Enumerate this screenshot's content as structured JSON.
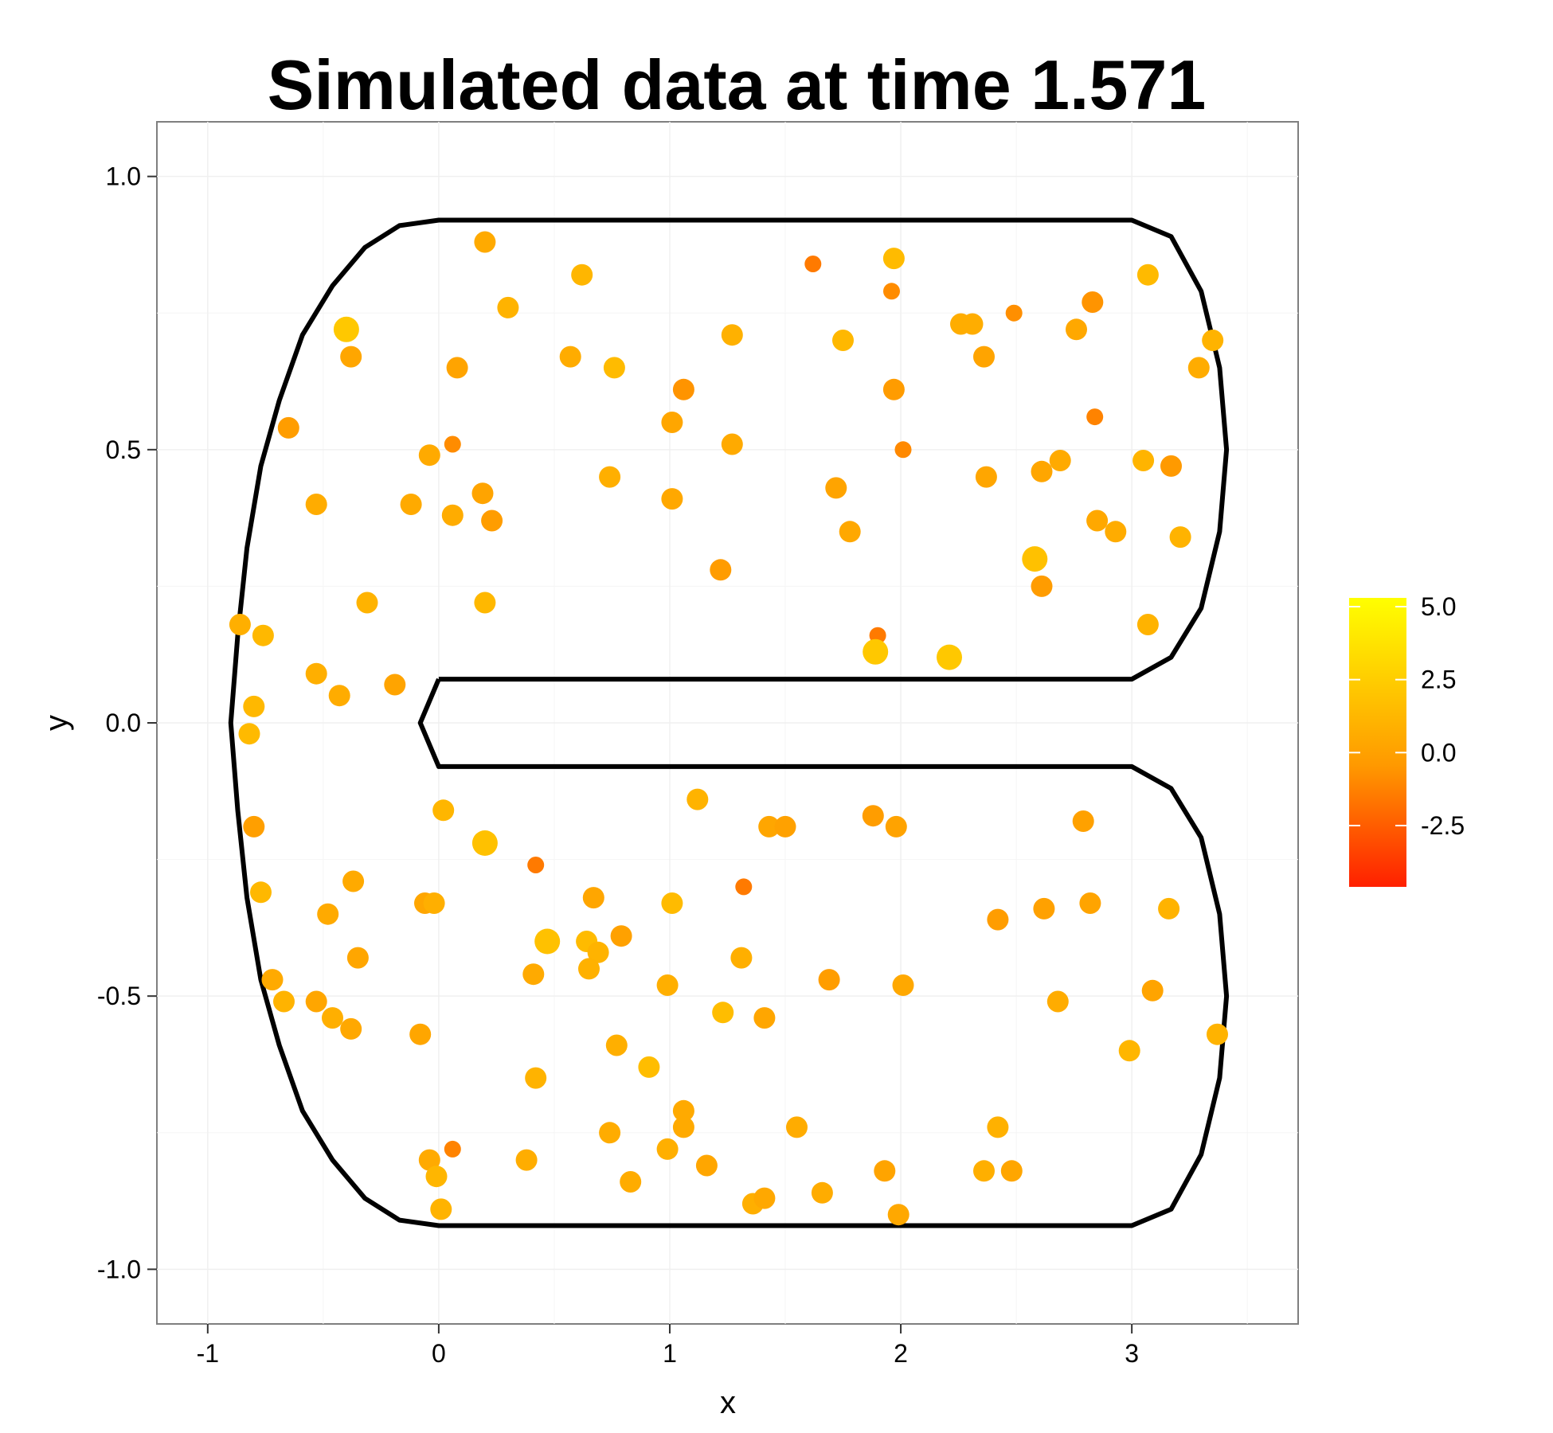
{
  "chart_data": {
    "type": "scatter",
    "title": "Simulated data at time 1.571",
    "xlabel": "x",
    "ylabel": "y",
    "xlim": [
      -1.22,
      3.72
    ],
    "ylim": [
      -1.1,
      1.1
    ],
    "x_ticks": [
      -1,
      0,
      1,
      2,
      3
    ],
    "x_tick_labels": [
      "-1",
      "0",
      "1",
      "2",
      "3"
    ],
    "y_ticks": [
      -1.0,
      -0.5,
      0.0,
      0.5,
      1.0
    ],
    "y_tick_labels": [
      "-1.0",
      "-0.5",
      "0.0",
      "0.5",
      "1.0"
    ],
    "grid": true,
    "panel_background": "#ffffff",
    "grid_color": "#f0f0f0",
    "boundary_color": "#000000",
    "legend": {
      "placement": "right",
      "type": "colorbar",
      "low_color": "#FF2000",
      "mid_color": "#FF9900",
      "high_color": "#FFFF00",
      "range": [
        -4.6,
        5.3
      ],
      "ticks": [
        5.0,
        2.5,
        0.0,
        -2.5
      ],
      "tick_labels": [
        "5.0",
        "2.5",
        "0.0",
        "-2.5"
      ]
    },
    "boundary": [
      [
        0.0,
        0.08
      ],
      [
        3.0,
        0.08
      ],
      [
        3.17,
        0.12
      ],
      [
        3.3,
        0.21
      ],
      [
        3.38,
        0.35
      ],
      [
        3.41,
        0.5
      ],
      [
        3.38,
        0.65
      ],
      [
        3.3,
        0.79
      ],
      [
        3.17,
        0.89
      ],
      [
        3.0,
        0.92
      ],
      [
        0.0,
        0.92
      ],
      [
        -0.17,
        0.91
      ],
      [
        -0.32,
        0.87
      ],
      [
        -0.46,
        0.8
      ],
      [
        -0.59,
        0.71
      ],
      [
        -0.69,
        0.59
      ],
      [
        -0.77,
        0.47
      ],
      [
        -0.83,
        0.32
      ],
      [
        -0.87,
        0.16
      ],
      [
        -0.9,
        0.0
      ],
      [
        -0.87,
        -0.16
      ],
      [
        -0.83,
        -0.32
      ],
      [
        -0.77,
        -0.47
      ],
      [
        -0.69,
        -0.59
      ],
      [
        -0.59,
        -0.71
      ],
      [
        -0.46,
        -0.8
      ],
      [
        -0.32,
        -0.87
      ],
      [
        -0.17,
        -0.91
      ],
      [
        0.0,
        -0.92
      ],
      [
        3.0,
        -0.92
      ],
      [
        3.17,
        -0.89
      ],
      [
        3.3,
        -0.79
      ],
      [
        3.38,
        -0.65
      ],
      [
        3.41,
        -0.5
      ],
      [
        3.38,
        -0.35
      ],
      [
        3.3,
        -0.21
      ],
      [
        3.17,
        -0.12
      ],
      [
        3.0,
        -0.08
      ],
      [
        0.0,
        -0.08
      ],
      [
        -0.08,
        0.0
      ],
      [
        0.0,
        0.08
      ]
    ],
    "points": [
      {
        "x": 0.2,
        "y": 0.88,
        "v": 0.5
      },
      {
        "x": 0.3,
        "y": 0.76,
        "v": 1.0
      },
      {
        "x": 0.62,
        "y": 0.82,
        "v": 1.2
      },
      {
        "x": 1.62,
        "y": 0.84,
        "v": -1.5
      },
      {
        "x": 1.97,
        "y": 0.85,
        "v": 1.5
      },
      {
        "x": 1.96,
        "y": 0.79,
        "v": -0.9
      },
      {
        "x": 2.49,
        "y": 0.75,
        "v": -0.8
      },
      {
        "x": 2.83,
        "y": 0.77,
        "v": -0.6
      },
      {
        "x": 3.07,
        "y": 0.82,
        "v": 1.4
      },
      {
        "x": -0.4,
        "y": 0.72,
        "v": 2.2
      },
      {
        "x": -0.38,
        "y": 0.67,
        "v": 0.3
      },
      {
        "x": 0.08,
        "y": 0.65,
        "v": 0.2
      },
      {
        "x": 0.57,
        "y": 0.67,
        "v": 0.6
      },
      {
        "x": 0.76,
        "y": 0.65,
        "v": 1.5
      },
      {
        "x": 1.27,
        "y": 0.71,
        "v": 0.9
      },
      {
        "x": 1.75,
        "y": 0.7,
        "v": 1.3
      },
      {
        "x": 2.26,
        "y": 0.73,
        "v": 0.7
      },
      {
        "x": 2.31,
        "y": 0.73,
        "v": 0.7
      },
      {
        "x": 2.36,
        "y": 0.67,
        "v": 0.2
      },
      {
        "x": 2.76,
        "y": 0.72,
        "v": 0.4
      },
      {
        "x": 3.29,
        "y": 0.65,
        "v": 0.6
      },
      {
        "x": 3.35,
        "y": 0.7,
        "v": 1.0
      },
      {
        "x": 1.06,
        "y": 0.61,
        "v": -0.6
      },
      {
        "x": 1.97,
        "y": 0.61,
        "v": -0.3
      },
      {
        "x": 2.84,
        "y": 0.56,
        "v": -1.2
      },
      {
        "x": -0.65,
        "y": 0.54,
        "v": -0.2
      },
      {
        "x": -0.04,
        "y": 0.49,
        "v": 0.5
      },
      {
        "x": 0.06,
        "y": 0.51,
        "v": -0.9
      },
      {
        "x": 1.01,
        "y": 0.55,
        "v": 0.3
      },
      {
        "x": 1.27,
        "y": 0.51,
        "v": 0.5
      },
      {
        "x": 2.01,
        "y": 0.5,
        "v": -1.0
      },
      {
        "x": 2.61,
        "y": 0.46,
        "v": 0.3
      },
      {
        "x": 2.69,
        "y": 0.48,
        "v": 0.5
      },
      {
        "x": 3.05,
        "y": 0.48,
        "v": 1.1
      },
      {
        "x": 3.17,
        "y": 0.47,
        "v": -0.4
      },
      {
        "x": 0.74,
        "y": 0.45,
        "v": 0.8
      },
      {
        "x": 2.37,
        "y": 0.45,
        "v": 0.3
      },
      {
        "x": -0.53,
        "y": 0.4,
        "v": 0.6
      },
      {
        "x": -0.12,
        "y": 0.4,
        "v": 0.5
      },
      {
        "x": 0.06,
        "y": 0.38,
        "v": 0.6
      },
      {
        "x": 0.19,
        "y": 0.42,
        "v": 0.2
      },
      {
        "x": 1.01,
        "y": 0.41,
        "v": 0.4
      },
      {
        "x": 1.72,
        "y": 0.43,
        "v": 0.2
      },
      {
        "x": 0.23,
        "y": 0.37,
        "v": -0.2
      },
      {
        "x": 1.78,
        "y": 0.35,
        "v": 0.4
      },
      {
        "x": 2.85,
        "y": 0.37,
        "v": 0.4
      },
      {
        "x": 2.93,
        "y": 0.35,
        "v": 0.6
      },
      {
        "x": 3.21,
        "y": 0.34,
        "v": 1.0
      },
      {
        "x": 2.58,
        "y": 0.3,
        "v": 1.8
      },
      {
        "x": 1.22,
        "y": 0.28,
        "v": -0.3
      },
      {
        "x": 2.61,
        "y": 0.25,
        "v": -0.3
      },
      {
        "x": -0.31,
        "y": 0.22,
        "v": 1.0
      },
      {
        "x": 0.2,
        "y": 0.22,
        "v": 1.3
      },
      {
        "x": -0.86,
        "y": 0.18,
        "v": 0.8
      },
      {
        "x": -0.76,
        "y": 0.16,
        "v": 1.3
      },
      {
        "x": 1.9,
        "y": 0.16,
        "v": -1.5
      },
      {
        "x": 1.89,
        "y": 0.13,
        "v": 2.2
      },
      {
        "x": 2.21,
        "y": 0.12,
        "v": 2.2
      },
      {
        "x": 3.07,
        "y": 0.18,
        "v": 1.0
      },
      {
        "x": -0.53,
        "y": 0.09,
        "v": 0.8
      },
      {
        "x": -0.19,
        "y": 0.07,
        "v": 0.2
      },
      {
        "x": -0.8,
        "y": 0.03,
        "v": 1.3
      },
      {
        "x": -0.43,
        "y": 0.05,
        "v": 0.6
      },
      {
        "x": -0.82,
        "y": -0.02,
        "v": 1.4
      },
      {
        "x": 1.12,
        "y": -0.14,
        "v": 1.0
      },
      {
        "x": 0.02,
        "y": -0.16,
        "v": 1.2
      },
      {
        "x": 1.88,
        "y": -0.17,
        "v": -0.2
      },
      {
        "x": 2.79,
        "y": -0.18,
        "v": 0.0
      },
      {
        "x": -0.8,
        "y": -0.19,
        "v": -0.1
      },
      {
        "x": 1.43,
        "y": -0.19,
        "v": 0.3
      },
      {
        "x": 1.5,
        "y": -0.19,
        "v": 0.0
      },
      {
        "x": 1.98,
        "y": -0.19,
        "v": 0.1
      },
      {
        "x": 0.2,
        "y": -0.22,
        "v": 1.8
      },
      {
        "x": 0.42,
        "y": -0.26,
        "v": -1.5
      },
      {
        "x": -0.37,
        "y": -0.29,
        "v": 0.5
      },
      {
        "x": -0.77,
        "y": -0.31,
        "v": 1.3
      },
      {
        "x": 0.67,
        "y": -0.32,
        "v": 0.3
      },
      {
        "x": 1.32,
        "y": -0.3,
        "v": -1.5
      },
      {
        "x": -0.06,
        "y": -0.33,
        "v": 0.3
      },
      {
        "x": -0.02,
        "y": -0.33,
        "v": 0.8
      },
      {
        "x": 1.01,
        "y": -0.33,
        "v": 1.5
      },
      {
        "x": 2.62,
        "y": -0.34,
        "v": 0.0
      },
      {
        "x": 2.82,
        "y": -0.33,
        "v": 0.2
      },
      {
        "x": 3.16,
        "y": -0.34,
        "v": 1.0
      },
      {
        "x": -0.48,
        "y": -0.35,
        "v": 0.5
      },
      {
        "x": 2.42,
        "y": -0.36,
        "v": -0.2
      },
      {
        "x": 0.47,
        "y": -0.4,
        "v": 1.8
      },
      {
        "x": 0.64,
        "y": -0.4,
        "v": 1.5
      },
      {
        "x": 0.69,
        "y": -0.42,
        "v": 1.0
      },
      {
        "x": 0.79,
        "y": -0.39,
        "v": 0.0
      },
      {
        "x": -0.35,
        "y": -0.43,
        "v": 0.3
      },
      {
        "x": 1.31,
        "y": -0.43,
        "v": 0.8
      },
      {
        "x": 0.41,
        "y": -0.46,
        "v": 0.5
      },
      {
        "x": 0.65,
        "y": -0.45,
        "v": 0.9
      },
      {
        "x": -0.72,
        "y": -0.47,
        "v": 0.5
      },
      {
        "x": 1.69,
        "y": -0.47,
        "v": -0.2
      },
      {
        "x": 0.99,
        "y": -0.48,
        "v": 0.8
      },
      {
        "x": 2.01,
        "y": -0.48,
        "v": 0.4
      },
      {
        "x": -0.67,
        "y": -0.51,
        "v": 1.0
      },
      {
        "x": -0.53,
        "y": -0.51,
        "v": 0.3
      },
      {
        "x": 2.68,
        "y": -0.51,
        "v": 0.6
      },
      {
        "x": 3.09,
        "y": -0.49,
        "v": 0.2
      },
      {
        "x": -0.46,
        "y": -0.54,
        "v": 0.8
      },
      {
        "x": 1.23,
        "y": -0.53,
        "v": 1.6
      },
      {
        "x": 1.41,
        "y": -0.54,
        "v": 0.3
      },
      {
        "x": -0.38,
        "y": -0.56,
        "v": 0.4
      },
      {
        "x": -0.08,
        "y": -0.57,
        "v": 0.3
      },
      {
        "x": 3.37,
        "y": -0.57,
        "v": 1.0
      },
      {
        "x": 0.77,
        "y": -0.59,
        "v": 0.8
      },
      {
        "x": 2.99,
        "y": -0.6,
        "v": 1.2
      },
      {
        "x": 0.91,
        "y": -0.63,
        "v": 1.6
      },
      {
        "x": 0.42,
        "y": -0.65,
        "v": 1.0
      },
      {
        "x": 1.06,
        "y": -0.71,
        "v": 0.5
      },
      {
        "x": 1.06,
        "y": -0.74,
        "v": 0.5
      },
      {
        "x": 0.74,
        "y": -0.75,
        "v": 0.6
      },
      {
        "x": 1.55,
        "y": -0.74,
        "v": 0.6
      },
      {
        "x": 2.42,
        "y": -0.74,
        "v": 0.9
      },
      {
        "x": 0.99,
        "y": -0.78,
        "v": 0.8
      },
      {
        "x": 0.06,
        "y": -0.78,
        "v": -1.2
      },
      {
        "x": -0.04,
        "y": -0.8,
        "v": 0.5
      },
      {
        "x": 0.38,
        "y": -0.8,
        "v": 0.7
      },
      {
        "x": 1.16,
        "y": -0.81,
        "v": 0.3
      },
      {
        "x": -0.01,
        "y": -0.83,
        "v": 1.2
      },
      {
        "x": 1.93,
        "y": -0.82,
        "v": 0.2
      },
      {
        "x": 2.36,
        "y": -0.82,
        "v": 0.8
      },
      {
        "x": 2.48,
        "y": -0.82,
        "v": 0.3
      },
      {
        "x": 0.83,
        "y": -0.84,
        "v": 0.6
      },
      {
        "x": 1.66,
        "y": -0.86,
        "v": 0.6
      },
      {
        "x": 1.36,
        "y": -0.88,
        "v": 0.8
      },
      {
        "x": 1.41,
        "y": -0.87,
        "v": 0.4
      },
      {
        "x": 0.01,
        "y": -0.89,
        "v": 1.0
      },
      {
        "x": 1.99,
        "y": -0.9,
        "v": 0.4
      }
    ]
  }
}
